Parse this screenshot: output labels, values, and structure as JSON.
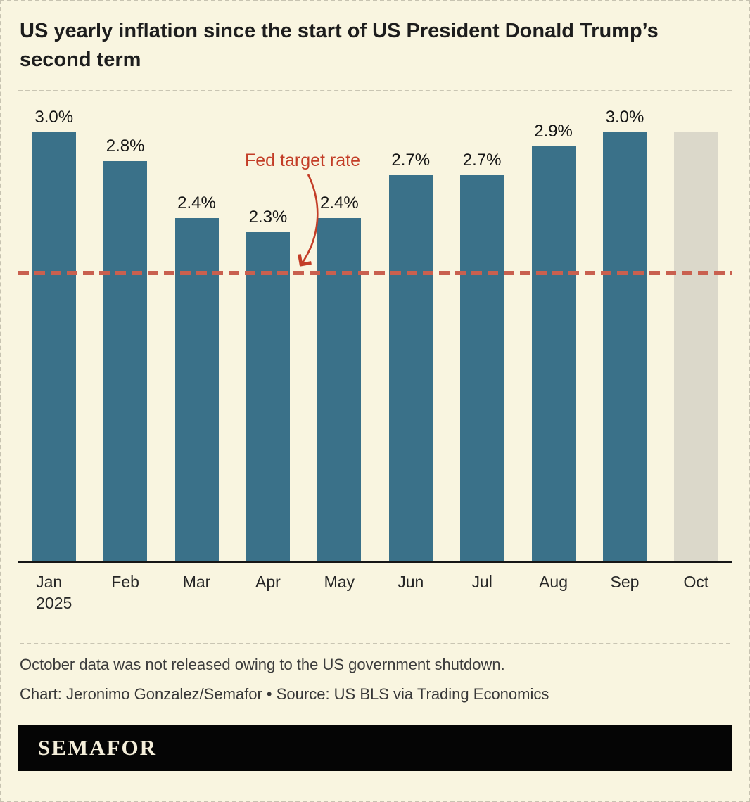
{
  "title": "US yearly inflation since the start of US President Donald Trump’s second term",
  "chart_data": {
    "type": "bar",
    "title": "US yearly inflation since the start of US President Donald Trump’s second term",
    "categories": [
      "Jan",
      "Feb",
      "Mar",
      "Apr",
      "May",
      "Jun",
      "Jul",
      "Aug",
      "Sep",
      "Oct"
    ],
    "year_label": "2025",
    "values": [
      3.0,
      2.8,
      2.4,
      2.3,
      2.4,
      2.7,
      2.7,
      2.9,
      3.0,
      null
    ],
    "labels": [
      "3.0%",
      "2.8%",
      "2.4%",
      "2.3%",
      "2.4%",
      "2.7%",
      "2.7%",
      "2.9%",
      "3.0%",
      ""
    ],
    "placeholder_value": 3.0,
    "annotation": "Fed target rate",
    "target_value": 2.0,
    "ylim": [
      0,
      3.3
    ],
    "xlabel": "",
    "ylabel": "",
    "grid": "off",
    "legend": "none",
    "bar_color": "#3a7189",
    "missing_bar_color": "#dbd8ca",
    "target_color": "#c9604f",
    "annotation_color": "#c33d27"
  },
  "footnote": "October data was not released owing to the US government shutdown.",
  "credit": "Chart: Jeronimo Gonzalez/Semafor • Source: US BLS via Trading Economics",
  "brand": "SEMAFOR"
}
